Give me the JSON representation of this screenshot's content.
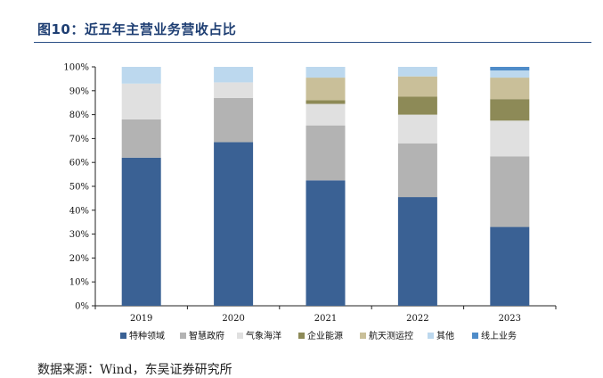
{
  "figure": {
    "title": "图10：近五年主营业务营收占比",
    "source": "数据来源：Wind，东吴证券研究所"
  },
  "chart_data": {
    "type": "bar",
    "stacked": true,
    "categories": [
      "2019",
      "2020",
      "2021",
      "2022",
      "2023"
    ],
    "series": [
      {
        "name": "特种领域",
        "color": "#3a6194",
        "values": [
          62,
          68.5,
          52.5,
          45.5,
          33
        ]
      },
      {
        "name": "智慧政府",
        "color": "#b3b3b3",
        "values": [
          16,
          18.5,
          23,
          22.5,
          29.5
        ]
      },
      {
        "name": "气象海洋",
        "color": "#e0e0e0",
        "values": [
          15,
          6.5,
          9,
          12,
          15
        ]
      },
      {
        "name": "企业能源",
        "color": "#8d8a57",
        "values": [
          0,
          0,
          1.5,
          7.5,
          9
        ]
      },
      {
        "name": "航天测运控",
        "color": "#c9bf99",
        "values": [
          0,
          0,
          9.5,
          8.5,
          9
        ]
      },
      {
        "name": "其他",
        "color": "#bcd8ee",
        "values": [
          7,
          6.5,
          4.5,
          4,
          3
        ]
      },
      {
        "name": "线上业务",
        "color": "#4f8cc9",
        "values": [
          0,
          0,
          0,
          0,
          1.5
        ]
      }
    ],
    "y_ticks": [
      "0%",
      "10%",
      "20%",
      "30%",
      "40%",
      "50%",
      "60%",
      "70%",
      "80%",
      "90%",
      "100%"
    ],
    "ylim": [
      0,
      100
    ],
    "grid": false,
    "legend_position": "bottom"
  }
}
